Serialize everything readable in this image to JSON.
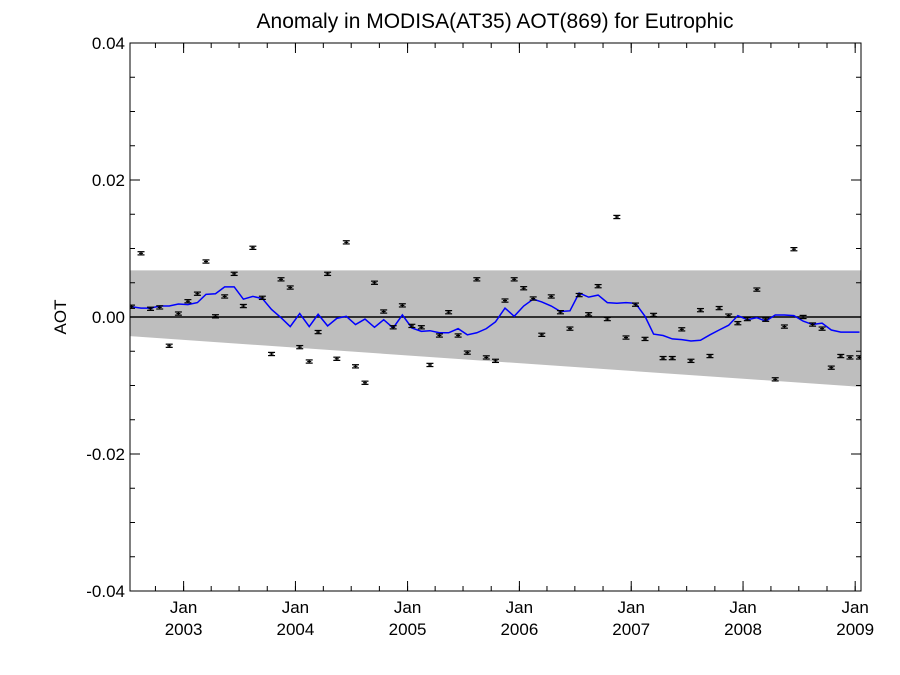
{
  "chart_data": {
    "type": "scatter",
    "title": "Anomaly in MODISA(AT35) AOT(869) for Eutrophic",
    "xlabel": "",
    "ylabel": "AOT",
    "xlim": [
      "2002-07-10",
      "2009-01-20"
    ],
    "ylim": [
      -0.04,
      0.04
    ],
    "y_ticks": [
      "0.04",
      "0.02",
      "0.00",
      "-0.02",
      "-0.04"
    ],
    "x_ticks": [
      {
        "date": "2003-01-01",
        "month": "Jan",
        "year": "2003"
      },
      {
        "date": "2004-01-01",
        "month": "Jan",
        "year": "2004"
      },
      {
        "date": "2005-01-01",
        "month": "Jan",
        "year": "2005"
      },
      {
        "date": "2006-01-01",
        "month": "Jan",
        "year": "2006"
      },
      {
        "date": "2007-01-01",
        "month": "Jan",
        "year": "2007"
      },
      {
        "date": "2008-01-01",
        "month": "Jan",
        "year": "2008"
      },
      {
        "date": "2009-01-01",
        "month": "Jan",
        "year": "2009"
      }
    ],
    "grid": false,
    "legend": "none",
    "band": {
      "x": [
        "2002-07-10",
        "2009-01-20"
      ],
      "upper": [
        0.0068,
        0.0068
      ],
      "lower": [
        -0.0028,
        -0.0102
      ]
    },
    "zero_line": 0.0,
    "points": {
      "x": [
        "2002-07-15",
        "2002-08-15",
        "2002-09-15",
        "2002-10-15",
        "2002-11-15",
        "2002-12-15",
        "2003-01-15",
        "2003-02-15",
        "2003-03-15",
        "2003-04-15",
        "2003-05-15",
        "2003-06-15",
        "2003-07-15",
        "2003-08-15",
        "2003-09-15",
        "2003-10-15",
        "2003-11-15",
        "2003-12-15",
        "2004-01-15",
        "2004-02-15",
        "2004-03-15",
        "2004-04-15",
        "2004-05-15",
        "2004-06-15",
        "2004-07-15",
        "2004-08-15",
        "2004-09-15",
        "2004-10-15",
        "2004-11-15",
        "2004-12-15",
        "2005-01-15",
        "2005-02-15",
        "2005-03-15",
        "2005-04-15",
        "2005-05-15",
        "2005-06-15",
        "2005-07-15",
        "2005-08-15",
        "2005-09-15",
        "2005-10-15",
        "2005-11-15",
        "2005-12-15",
        "2006-01-15",
        "2006-02-15",
        "2006-03-15",
        "2006-04-15",
        "2006-05-15",
        "2006-06-15",
        "2006-07-15",
        "2006-08-15",
        "2006-09-15",
        "2006-10-15",
        "2006-11-15",
        "2006-12-15",
        "2007-01-15",
        "2007-02-15",
        "2007-03-15",
        "2007-04-15",
        "2007-05-15",
        "2007-06-15",
        "2007-07-15",
        "2007-08-15",
        "2007-09-15",
        "2007-10-15",
        "2007-11-15",
        "2007-12-15",
        "2008-01-15",
        "2008-02-15",
        "2008-03-15",
        "2008-04-15",
        "2008-05-15",
        "2008-06-15",
        "2008-07-15",
        "2008-08-15",
        "2008-09-15",
        "2008-10-15",
        "2008-11-15",
        "2008-12-15",
        "2009-01-15"
      ],
      "y": [
        0.0015,
        0.0093,
        0.0012,
        0.0014,
        -0.0042,
        0.0005,
        0.0023,
        0.0034,
        0.0081,
        0.0001,
        0.003,
        0.0063,
        0.0016,
        0.0101,
        0.0028,
        -0.0054,
        0.0055,
        0.0043,
        -0.0044,
        -0.0065,
        -0.0022,
        0.0063,
        -0.0061,
        0.0109,
        -0.0072,
        -0.0096,
        0.005,
        0.0008,
        -0.0015,
        0.0017,
        -0.0013,
        -0.0015,
        -0.007,
        -0.0027,
        0.0007,
        -0.0027,
        -0.0052,
        0.0055,
        -0.0059,
        -0.0064,
        0.0024,
        0.0055,
        0.0042,
        0.0027,
        -0.0026,
        0.003,
        0.0007,
        -0.0017,
        0.0032,
        0.0004,
        0.0045,
        -0.0003,
        0.0146,
        -0.003,
        0.0018,
        -0.0032,
        0.0003,
        -0.006,
        -0.006,
        -0.0018,
        -0.0064,
        0.001,
        -0.0057,
        0.0013,
        0.0002,
        -0.0009,
        -0.0003,
        0.004,
        -0.0004,
        -0.0091,
        -0.0014,
        0.0099,
        0.0,
        -0.0011,
        -0.0017,
        -0.0074,
        -0.0057,
        -0.0059,
        -0.0059
      ]
    },
    "series": [
      {
        "x": [
          "2002-07-15",
          "2002-08-15",
          "2002-09-15",
          "2002-10-15",
          "2002-11-15",
          "2002-12-15",
          "2003-01-15",
          "2003-02-15",
          "2003-03-15",
          "2003-04-15",
          "2003-05-15",
          "2003-06-15",
          "2003-07-15",
          "2003-08-15",
          "2003-09-15",
          "2003-10-15",
          "2003-11-15",
          "2003-12-15",
          "2004-01-15",
          "2004-02-15",
          "2004-03-15",
          "2004-04-15",
          "2004-05-15",
          "2004-06-15",
          "2004-07-15",
          "2004-08-15",
          "2004-09-15",
          "2004-10-15",
          "2004-11-15",
          "2004-12-15",
          "2005-01-15",
          "2005-02-15",
          "2005-03-15",
          "2005-04-15",
          "2005-05-15",
          "2005-06-15",
          "2005-07-15",
          "2005-08-15",
          "2005-09-15",
          "2005-10-15",
          "2005-11-15",
          "2005-12-15",
          "2006-01-15",
          "2006-02-15",
          "2006-03-15",
          "2006-04-15",
          "2006-05-15",
          "2006-06-15",
          "2006-07-15",
          "2006-08-15",
          "2006-09-15",
          "2006-10-15",
          "2006-11-15",
          "2006-12-15",
          "2007-01-15",
          "2007-02-15",
          "2007-03-15",
          "2007-04-15",
          "2007-05-15",
          "2007-06-15",
          "2007-07-15",
          "2007-08-15",
          "2007-09-15",
          "2007-10-15",
          "2007-11-15",
          "2007-12-15",
          "2008-01-15",
          "2008-02-15",
          "2008-03-15",
          "2008-04-15",
          "2008-05-15",
          "2008-06-15",
          "2008-07-15",
          "2008-08-15",
          "2008-09-15",
          "2008-10-15",
          "2008-11-15",
          "2008-12-15",
          "2009-01-15"
        ],
        "y": [
          0.0015,
          0.0013,
          0.0013,
          0.0016,
          0.0016,
          0.0019,
          0.0018,
          0.0021,
          0.0033,
          0.0034,
          0.0044,
          0.0044,
          0.0026,
          0.003,
          0.0027,
          0.0011,
          -0.0001,
          -0.0014,
          0.0005,
          -0.0014,
          0.0004,
          -0.0013,
          -0.0002,
          0.0001,
          -0.0011,
          -0.0003,
          -0.0015,
          -0.0004,
          -0.0016,
          0.0003,
          -0.0016,
          -0.0021,
          -0.002,
          -0.0023,
          -0.0023,
          -0.0017,
          -0.0026,
          -0.0023,
          -0.0017,
          -0.0007,
          0.0013,
          0.0001,
          0.0016,
          0.0026,
          0.0022,
          0.0016,
          0.0008,
          0.0009,
          0.0035,
          0.0029,
          0.0032,
          0.0021,
          0.002,
          0.0021,
          0.002,
          0.0001,
          -0.0025,
          -0.0027,
          -0.0032,
          -0.0033,
          -0.0035,
          -0.0034,
          -0.0026,
          -0.0019,
          -0.0012,
          0.0002,
          -0.0004,
          -0.0001,
          -0.0006,
          0.0003,
          0.0003,
          0.0002,
          -0.0006,
          -0.0011,
          -0.0009,
          -0.0019,
          -0.0022,
          -0.0022,
          -0.0022
        ]
      }
    ],
    "colors": {
      "band": "#bebebe",
      "line": "#0000ff",
      "points": "#000000",
      "zero_line": "#000000",
      "axes": "#000000"
    }
  }
}
